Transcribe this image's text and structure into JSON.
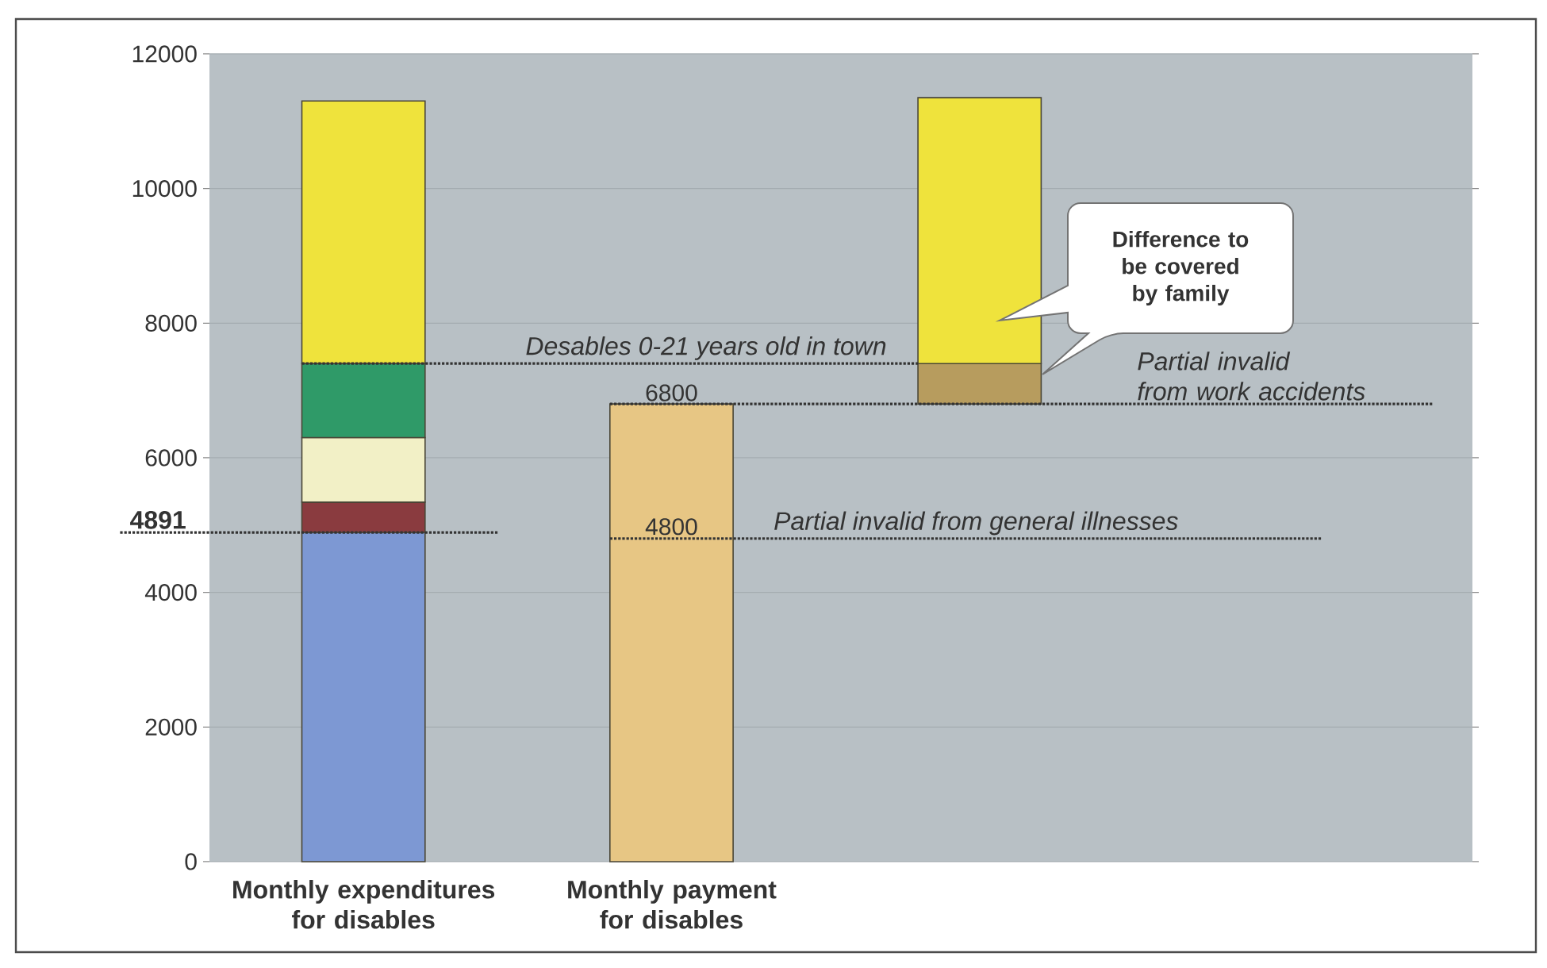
{
  "chart_data": {
    "type": "bar",
    "stacked": true,
    "categories": [
      "Monthly expenditures for disables",
      "Monthly payment for disables",
      null
    ],
    "series": [
      {
        "color": "#b79c5e",
        "values": [
          null,
          null,
          600
        ],
        "base": [
          null,
          null,
          6800
        ]
      },
      {
        "color": "#7d98d3",
        "values": [
          4891,
          null,
          null
        ]
      },
      {
        "color": "#8a3b3f",
        "values": [
          450,
          null,
          null
        ]
      },
      {
        "color": "#f2f0c6",
        "values": [
          960,
          null,
          null
        ]
      },
      {
        "color": "#2f9a68",
        "values": [
          1100,
          null,
          null
        ]
      },
      {
        "color": "#e7c684",
        "values": [
          null,
          6800,
          null
        ],
        "value_labels": [
          null,
          "6800",
          null
        ]
      },
      {
        "color": "#efe33c",
        "values": [
          3900,
          null,
          3950
        ]
      }
    ],
    "ylim": [
      0,
      12000
    ],
    "yticks": [
      0,
      2000,
      4000,
      6000,
      8000,
      10000,
      12000
    ],
    "grid": "y",
    "ref_lines": [
      {
        "axis": "y",
        "value": 4891,
        "label": "4891",
        "color": "#333333",
        "line_style": "dotted"
      },
      {
        "axis": "y",
        "value": 7400,
        "label": "Desables 0-21 years old in town",
        "color": "#333333",
        "line_style": "dotted"
      },
      {
        "axis": "y",
        "value": 6800,
        "label": "Partial invalid from work accidents",
        "color": "#333333",
        "line_style": "dotted"
      },
      {
        "axis": "y",
        "value": 4800,
        "label": "Partial invalid from general illnesses",
        "color": "#333333",
        "line_style": "dotted"
      }
    ],
    "annotations": [
      {
        "text": "4800",
        "y": 4800
      },
      "Difference to be covered by family"
    ]
  }
}
